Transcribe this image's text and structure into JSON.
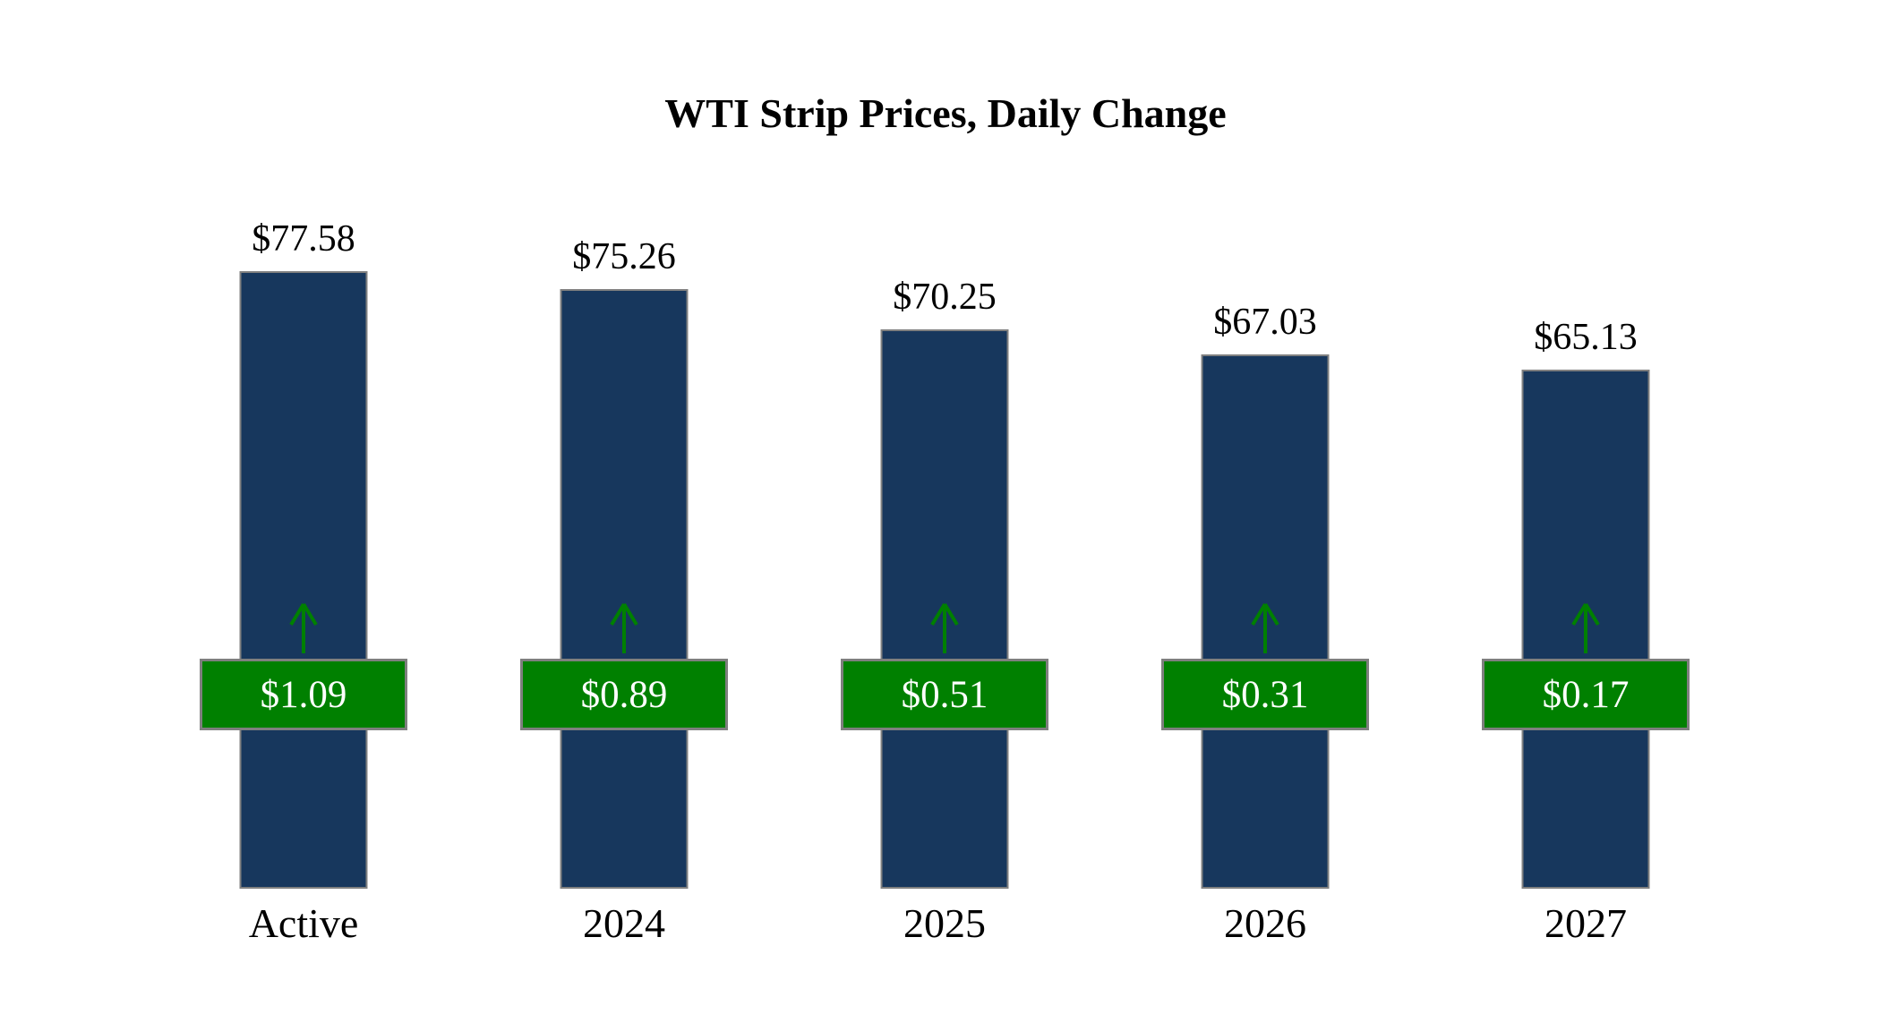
{
  "title": "WTI Strip Prices, Daily Change",
  "colors": {
    "bar": "#17375D",
    "change_badge": "#008000",
    "badge_border": "#7F7F7F",
    "badge_text": "#FFFFFF"
  },
  "chart_data": {
    "type": "bar",
    "title": "WTI Strip Prices, Daily Change",
    "categories": [
      "Active",
      "2024",
      "2025",
      "2026",
      "2027"
    ],
    "values": [
      77.58,
      75.26,
      70.25,
      67.03,
      65.13
    ],
    "price_labels": [
      "$77.58",
      "$75.26",
      "$70.25",
      "$67.03",
      "$65.13"
    ],
    "daily_changes": [
      1.09,
      0.89,
      0.51,
      0.31,
      0.17
    ],
    "change_labels": [
      "$1.09",
      "$0.89",
      "$0.51",
      "$0.31",
      "$0.17"
    ],
    "change_direction": "up",
    "xlabel": "",
    "ylabel": "",
    "ylim": [
      0,
      95
    ],
    "grid": false,
    "legend": "none",
    "bar_color": "#17375D",
    "change_color": "#008000"
  }
}
